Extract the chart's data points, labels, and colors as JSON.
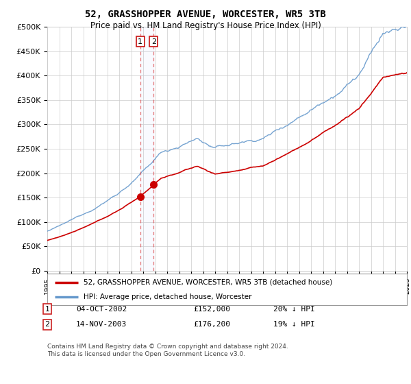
{
  "title": "52, GRASSHOPPER AVENUE, WORCESTER, WR5 3TB",
  "subtitle": "Price paid vs. HM Land Registry's House Price Index (HPI)",
  "legend_line1": "52, GRASSHOPPER AVENUE, WORCESTER, WR5 3TB (detached house)",
  "legend_line2": "HPI: Average price, detached house, Worcester",
  "table_rows": [
    {
      "num": "1",
      "date": "04-OCT-2002",
      "price": "£152,000",
      "hpi": "20% ↓ HPI"
    },
    {
      "num": "2",
      "date": "14-NOV-2003",
      "price": "£176,200",
      "hpi": "19% ↓ HPI"
    }
  ],
  "footnote": "Contains HM Land Registry data © Crown copyright and database right 2024.\nThis data is licensed under the Open Government Licence v3.0.",
  "red_color": "#cc0000",
  "blue_color": "#6699cc",
  "dashed_vline_color": "#dd4444",
  "grid_color": "#cccccc",
  "background_color": "#ffffff",
  "ylim": [
    0,
    500000
  ],
  "yticks": [
    0,
    50000,
    100000,
    150000,
    200000,
    250000,
    300000,
    350000,
    400000,
    450000,
    500000
  ],
  "year_start": 1995,
  "year_end": 2025,
  "sale1_year": 2002.75,
  "sale1_price": 152000,
  "sale2_year": 2003.87,
  "sale2_price": 176200
}
